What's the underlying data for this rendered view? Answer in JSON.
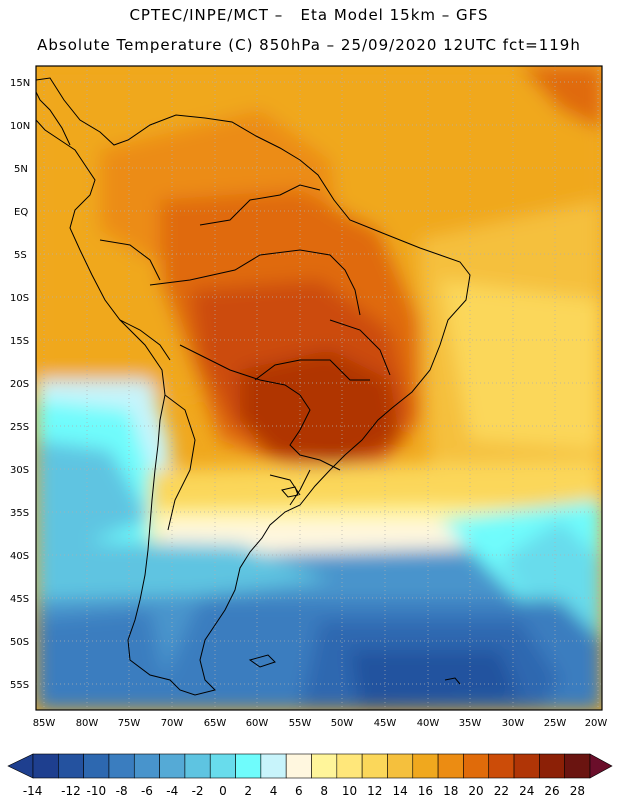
{
  "header": {
    "line1": "CPTEC/INPE/MCT –   Eta Model 15km – GFS",
    "line2": "Absolute Temperature (C) 850hPa – 25/09/2020 12UTC fct=119h"
  },
  "map": {
    "lat_range": [
      -59,
      17
    ],
    "lon_range": [
      -86,
      -19.5
    ],
    "lat_labels": [
      "15N",
      "10N",
      "5N",
      "EQ",
      "5S",
      "10S",
      "15S",
      "20S",
      "25S",
      "30S",
      "35S",
      "40S",
      "45S",
      "50S",
      "55S"
    ],
    "lon_labels": [
      "85W",
      "80W",
      "75W",
      "70W",
      "65W",
      "60W",
      "55W",
      "50W",
      "45W",
      "40W",
      "35W",
      "30W",
      "25W",
      "20W"
    ]
  },
  "legend": {
    "values": [
      "-14",
      "-12",
      "-10",
      "-8",
      "-6",
      "-4",
      "-2",
      "0",
      "2",
      "4",
      "6",
      "8",
      "10",
      "12",
      "14",
      "16",
      "18",
      "20",
      "22",
      "24",
      "26",
      "28"
    ],
    "colors": [
      "#1e3f8f",
      "#24529f",
      "#2d68b0",
      "#3a7dbf",
      "#4894cc",
      "#55aad6",
      "#5ec4e1",
      "#68dcec",
      "#6ffcfc",
      "#c8f4fb",
      "#fff7df",
      "#fff59a",
      "#ffe77a",
      "#fbd75a",
      "#f5c03d",
      "#f0a81e",
      "#ec8c12",
      "#e06b0a",
      "#cc4c08",
      "#b03506",
      "#8c2006",
      "#6a1410"
    ]
  }
}
